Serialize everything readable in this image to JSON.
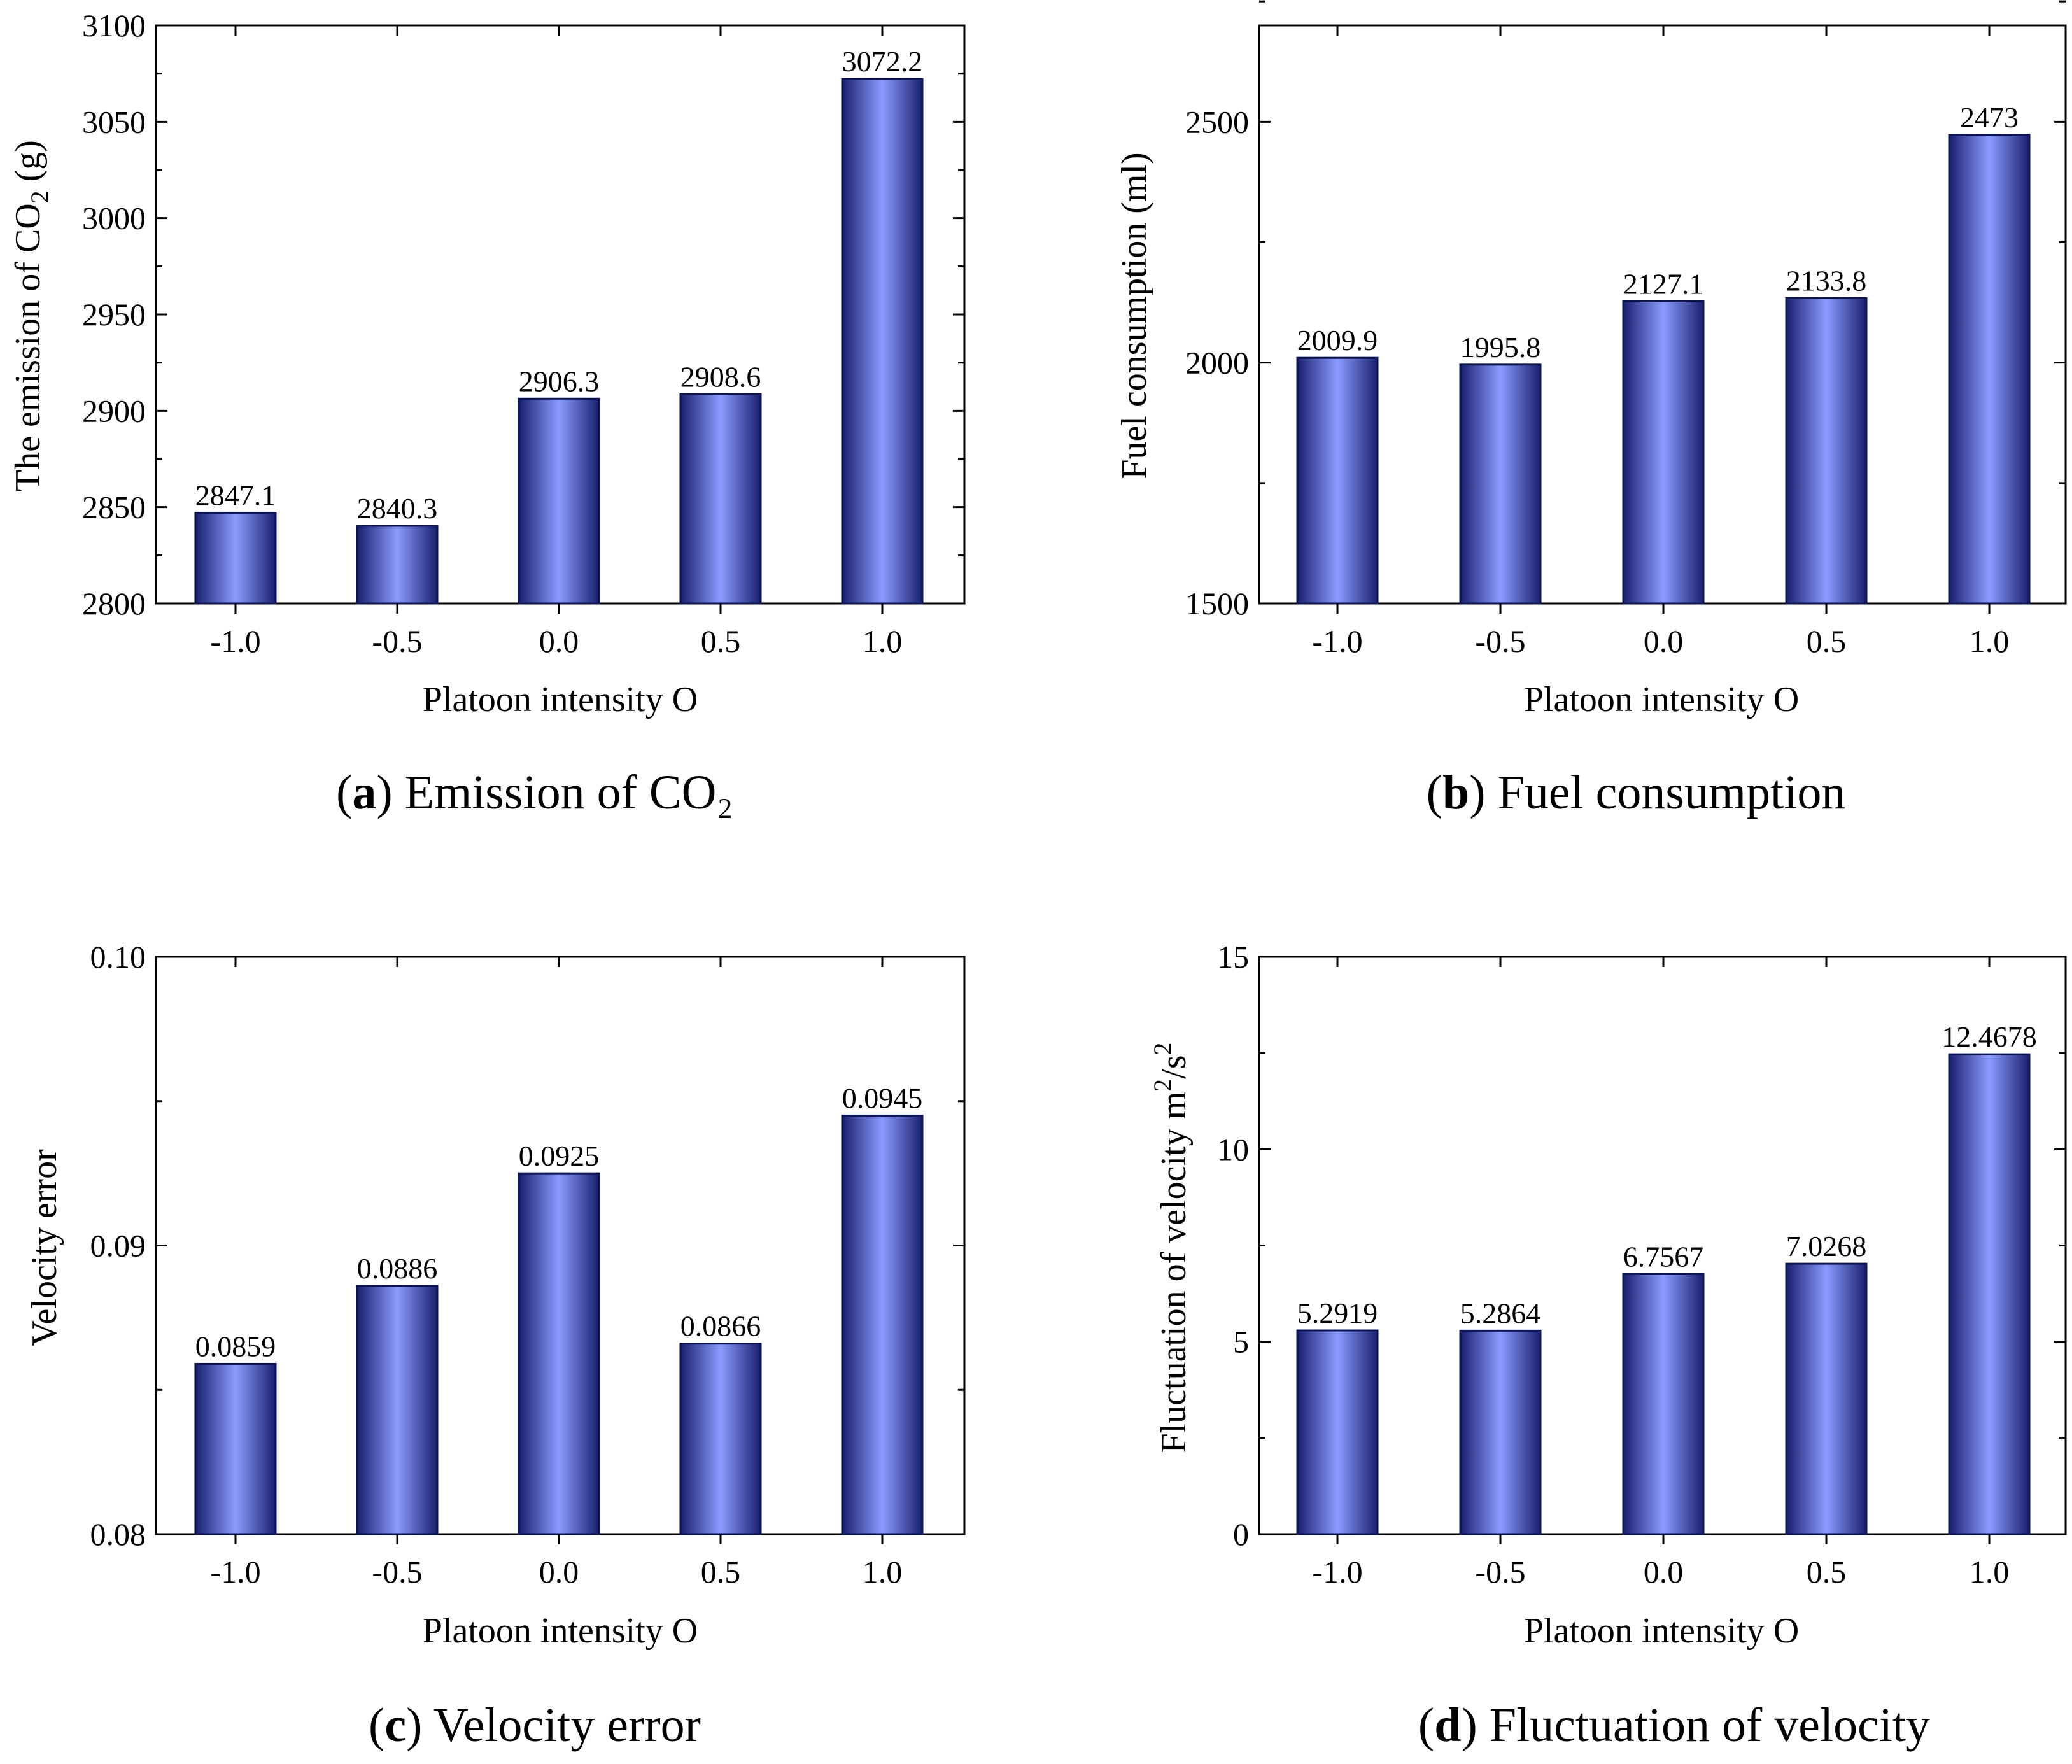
{
  "figure": {
    "bar_gradient": {
      "edge": "#1a1f6e",
      "center": "#8b9cff"
    },
    "text_color": "#000000"
  },
  "chart_data": [
    {
      "id": "a",
      "type": "bar",
      "categories": [
        "-1.0",
        "-0.5",
        "0.0",
        "0.5",
        "1.0"
      ],
      "values": [
        2847.1,
        2840.3,
        2906.3,
        2908.6,
        3072.2
      ],
      "value_labels": [
        "2847.1",
        "2840.3",
        "2906.3",
        "2908.6",
        "3072.2"
      ],
      "ylim": [
        2800,
        3100
      ],
      "yticks": [
        2800,
        2850,
        2900,
        2950,
        3000,
        3050,
        3100
      ],
      "ytick_labels": [
        "2800",
        "2850",
        "2900",
        "2950",
        "3000",
        "3050",
        "3100"
      ],
      "minor_ytick_step": 25,
      "ylabel": {
        "before": "The emission of  CO",
        "sub": "2",
        "after": " (g)"
      },
      "xlabel": "Platoon intensity O",
      "caption": {
        "tag": "a",
        "text": " Emission of CO₂"
      }
    },
    {
      "id": "b",
      "type": "bar",
      "categories": [
        "-1.0",
        "-0.5",
        "0.0",
        "0.5",
        "1.0"
      ],
      "values": [
        2009.9,
        1995.8,
        2127.1,
        2133.8,
        2473
      ],
      "value_labels": [
        "2009.9",
        "1995.8",
        "2127.1",
        "2133.8",
        "2473"
      ],
      "ylim": [
        1500,
        2700
      ],
      "yticks": [
        1500,
        2000,
        2500
      ],
      "ytick_labels": [
        "1500",
        "2000",
        "2500"
      ],
      "minor_ytick_step": 250,
      "ylabel": {
        "before": "Fuel consumption (ml)",
        "sub": "",
        "after": ""
      },
      "xlabel": "Platoon intensity O",
      "caption": {
        "tag": "b",
        "text": " Fuel consumption"
      }
    },
    {
      "id": "c",
      "type": "bar",
      "categories": [
        "-1.0",
        "-0.5",
        "0.0",
        "0.5",
        "1.0"
      ],
      "values": [
        0.0859,
        0.0886,
        0.0925,
        0.0866,
        0.0945
      ],
      "value_labels": [
        "0.0859",
        "0.0886",
        "0.0925",
        "0.0866",
        "0.0945"
      ],
      "ylim": [
        0.08,
        0.1
      ],
      "yticks": [
        0.08,
        0.09,
        0.1
      ],
      "ytick_labels": [
        "0.08",
        "0.09",
        "0.10"
      ],
      "minor_ytick_step": 0.005,
      "ylabel": {
        "before": "Velocity error",
        "sub": "",
        "after": ""
      },
      "xlabel": "Platoon intensity O",
      "caption": {
        "tag": "c",
        "text": " Velocity error"
      }
    },
    {
      "id": "d",
      "type": "bar",
      "categories": [
        "-1.0",
        "-0.5",
        "0.0",
        "0.5",
        "1.0"
      ],
      "values": [
        5.2919,
        5.2864,
        6.7567,
        7.0268,
        12.4678
      ],
      "value_labels": [
        "5.2919",
        "5.2864",
        "6.7567",
        "7.0268",
        "12.4678"
      ],
      "ylim": [
        0,
        15
      ],
      "yticks": [
        0,
        5,
        10,
        15
      ],
      "ytick_labels": [
        "0",
        "5",
        "10",
        "15"
      ],
      "minor_ytick_step": 2.5,
      "ylabel": {
        "before": "Fluctuation of velocity m",
        "sup1": "2",
        "mid": "/s",
        "sup2": "2"
      },
      "xlabel": "Platoon intensity O",
      "caption": {
        "tag": "d",
        "text": " Fluctuation of velocity"
      }
    }
  ]
}
